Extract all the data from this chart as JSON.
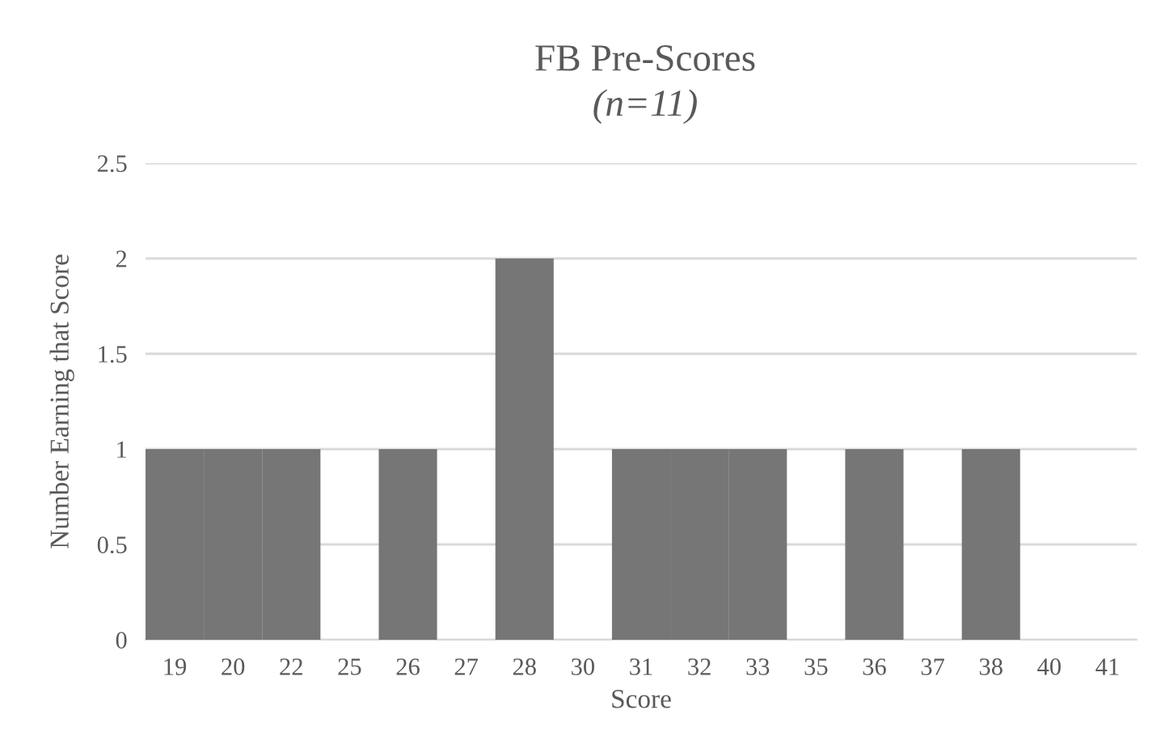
{
  "chart_data": {
    "type": "bar",
    "title": "FB Pre-Scores",
    "subtitle": "(n=11)",
    "xlabel": "Score",
    "ylabel": "Number Earning that Score",
    "categories": [
      "19",
      "20",
      "22",
      "25",
      "26",
      "27",
      "28",
      "30",
      "31",
      "32",
      "33",
      "35",
      "36",
      "37",
      "38",
      "40",
      "41"
    ],
    "values": [
      1,
      1,
      1,
      0,
      1,
      0,
      2,
      0,
      1,
      1,
      1,
      0,
      1,
      0,
      1,
      0,
      0
    ],
    "color": "#767676",
    "ylim": [
      0,
      2.5
    ],
    "yticks": [
      0,
      0.5,
      1,
      1.5,
      2,
      2.5
    ],
    "grid": "y",
    "legend": false
  }
}
